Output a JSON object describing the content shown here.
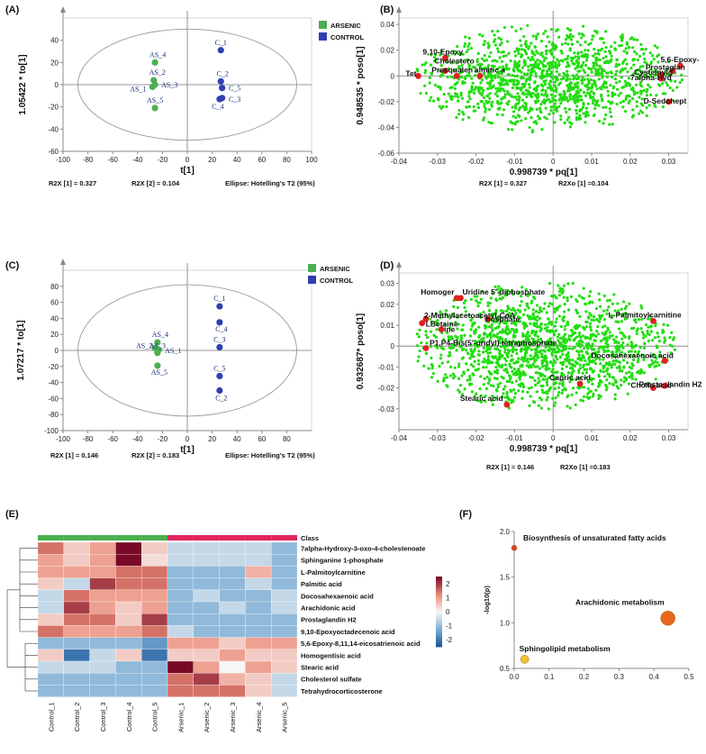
{
  "colors": {
    "arsenic": "#4caf50",
    "control": "#2f3fb0",
    "loading_point": "#22dd11",
    "highlight": "#e02020",
    "class_arsenic": "#4caf50",
    "class_control": "#e0245e"
  },
  "chart_data": [
    {
      "id": "A",
      "type": "scatter",
      "panel_label": "(A)",
      "xlabel": "t[1]",
      "ylabel": "1.05422 * to[1]",
      "xlim": [
        -100,
        100
      ],
      "ylim": [
        -60,
        60
      ],
      "xticks": [
        -100,
        -80,
        -60,
        -40,
        -20,
        0,
        20,
        40,
        60,
        80,
        100
      ],
      "yticks": [
        -60,
        -40,
        -20,
        0,
        20,
        40
      ],
      "legend": [
        {
          "name": "ARSENIC",
          "color": "#4caf50"
        },
        {
          "name": "CONTROL",
          "color": "#2f3fb0"
        }
      ],
      "legend_position": "top-right",
      "ellipse": {
        "rx": 88,
        "ry": 50
      },
      "points": [
        {
          "label": "AS_4",
          "x": -26,
          "y": 20,
          "group": "ARSENIC"
        },
        {
          "label": "AS_2",
          "x": -27,
          "y": 4,
          "group": "ARSENIC"
        },
        {
          "label": "AS_3",
          "x": -26,
          "y": 0,
          "group": "ARSENIC"
        },
        {
          "label": "AS_1",
          "x": -28,
          "y": -2,
          "group": "ARSENIC"
        },
        {
          "label": "AS_5",
          "x": -26,
          "y": -21,
          "group": "ARSENIC"
        },
        {
          "label": "C_1",
          "x": 27,
          "y": 31,
          "group": "CONTROL"
        },
        {
          "label": "C_2",
          "x": 27,
          "y": 3,
          "group": "CONTROL"
        },
        {
          "label": "C_5",
          "x": 28,
          "y": -3,
          "group": "CONTROL"
        },
        {
          "label": "C_3",
          "x": 28,
          "y": -12,
          "group": "CONTROL"
        },
        {
          "label": "C_4",
          "x": 26,
          "y": -13,
          "group": "CONTROL"
        }
      ],
      "notes": [
        "R2X [1] = 0.327",
        "R2X [2] = 0.104",
        "Ellipse: Hotelling's T2 (95%)"
      ]
    },
    {
      "id": "B",
      "type": "scatter",
      "panel_label": "(B)",
      "xlabel": "0.998739 * pq[1]",
      "ylabel": "0.948535 * poso[1]",
      "xlim": [
        -0.04,
        0.035
      ],
      "ylim": [
        -0.06,
        0.045
      ],
      "xticks": [
        -0.04,
        -0.03,
        -0.02,
        -0.01,
        0,
        0.01,
        0.02,
        0.03
      ],
      "xticklabels": [
        "-0.04",
        "-0.03",
        "-0.02",
        "-0.01",
        "0",
        "0.01",
        "0.02",
        "0.03"
      ],
      "yticks": [
        -0.06,
        -0.04,
        -0.02,
        0,
        0.02,
        0.04
      ],
      "yticklabels": [
        "-0.06",
        "-0.04",
        "-0.02",
        "0",
        "0.02",
        "0.04"
      ],
      "cloud": {
        "cx": -0.001,
        "cy": -0.002,
        "rx": 0.035,
        "ry": 0.042,
        "n": 1300,
        "seed": 7
      },
      "highlights": [
        {
          "label": "9,10-Epoxy",
          "x": -0.028,
          "y": 0.014
        },
        {
          "label": "Cholestero",
          "x": -0.028,
          "y": 0.004
        },
        {
          "label": "Presqualen",
          "x": -0.025,
          "y": 0.0
        },
        {
          "label": "almitic a",
          "x": -0.019,
          "y": 0.0
        },
        {
          "label": "Tet",
          "x": -0.035,
          "y": 0.0
        },
        {
          "label": "5,6-Epoxy-",
          "x": 0.033,
          "y": 0.008
        },
        {
          "label": "Prostaglan",
          "x": 0.031,
          "y": 0.004
        },
        {
          "label": "Cysteinylg",
          "x": 0.028,
          "y": 0.001
        },
        {
          "label": "7alpha-Hyd",
          "x": 0.028,
          "y": -0.002
        },
        {
          "label": "D-Sedohept",
          "x": 0.03,
          "y": -0.02
        }
      ],
      "notes": [
        "R2X [1] = 0.327",
        "R2Xo [1] =0.104"
      ]
    },
    {
      "id": "C",
      "type": "scatter",
      "panel_label": "(C)",
      "xlabel": "t[1]",
      "ylabel": "1.07217 * to[1]",
      "xlim": [
        -100,
        100
      ],
      "ylim": [
        -100,
        100
      ],
      "xticks": [
        -100,
        -80,
        -60,
        -40,
        -20,
        0,
        20,
        40,
        60,
        80
      ],
      "yticks": [
        -100,
        -80,
        -60,
        -40,
        -20,
        0,
        20,
        40,
        60,
        80
      ],
      "legend": [
        {
          "name": "ARSENIC",
          "color": "#4caf50"
        },
        {
          "name": "CONTROL",
          "color": "#2f3fb0"
        }
      ],
      "legend_position": "top-right",
      "ellipse": {
        "rx": 88,
        "ry": 82
      },
      "points": [
        {
          "label": "AS_4",
          "x": -24,
          "y": 10,
          "group": "ARSENIC"
        },
        {
          "label": "AS_2",
          "x": -26,
          "y": 3,
          "group": "ARSENIC"
        },
        {
          "label": "AS_1",
          "x": -23,
          "y": 1,
          "group": "ARSENIC"
        },
        {
          "label": "AS_3",
          "x": -24,
          "y": -3,
          "group": "ARSENIC"
        },
        {
          "label": "AS_5",
          "x": -24,
          "y": -19,
          "group": "ARSENIC"
        },
        {
          "label": "C_1",
          "x": 26,
          "y": 55,
          "group": "CONTROL"
        },
        {
          "label": "C_4",
          "x": 26,
          "y": 35,
          "group": "CONTROL"
        },
        {
          "label": "C_3",
          "x": 26,
          "y": 4,
          "group": "CONTROL"
        },
        {
          "label": "C_5",
          "x": 26,
          "y": -32,
          "group": "CONTROL"
        },
        {
          "label": "C_2",
          "x": 26,
          "y": -50,
          "group": "CONTROL"
        }
      ],
      "notes": [
        "R2X [1] = 0.146",
        "R2X [2] = 0.183",
        "Ellipse: Hotelling's T2 (95%)"
      ]
    },
    {
      "id": "D",
      "type": "scatter",
      "panel_label": "(D)",
      "xlabel": "0.998739 * pq[1]",
      "ylabel": "0.932687* poso[1]",
      "xlim": [
        -0.04,
        0.035
      ],
      "ylim": [
        -0.04,
        0.035
      ],
      "xticks": [
        -0.04,
        -0.03,
        -0.02,
        -0.01,
        0,
        0.01,
        0.02,
        0.03
      ],
      "xticklabels": [
        "-0.04",
        "-0.03",
        "-0.02",
        "-0.01",
        "0",
        "0.01",
        "0.02",
        "0.03"
      ],
      "yticks": [
        -0.03,
        -0.02,
        -0.01,
        0,
        0.01,
        0.02,
        0.03
      ],
      "yticklabels": [
        "-0.03",
        "-0.02",
        "-0.01",
        "0",
        "0.01",
        "0.02",
        "0.03"
      ],
      "cloud": {
        "cx": -0.002,
        "cy": 0.0,
        "rx": 0.034,
        "ry": 0.031,
        "n": 1500,
        "seed": 11
      },
      "highlights": [
        {
          "label": "Homoger",
          "x": -0.025,
          "y": 0.023
        },
        {
          "label": "Uridine 5'-diphosphate",
          "x": -0.024,
          "y": 0.023
        },
        {
          "label": "2-Methylacetoacetyl-CoA",
          "x": -0.033,
          "y": 0.013
        },
        {
          "label": "hosphate",
          "x": -0.017,
          "y": 0.013
        },
        {
          "label": "L-Palmitoylcarnitine",
          "x": 0.026,
          "y": 0.012
        },
        {
          "label": "LBetaine",
          "x": -0.034,
          "y": 0.011
        },
        {
          "label": "ine",
          "x": -0.029,
          "y": 0.008
        },
        {
          "label": "P1,P4-Bis(5'-uridyl) tetraphosphate",
          "x": -0.033,
          "y": -0.001
        },
        {
          "label": "Docosahexaenoic acid",
          "x": 0.029,
          "y": -0.007
        },
        {
          "label": "Capric acid",
          "x": 0.007,
          "y": -0.018
        },
        {
          "label": "Prostaglandin H2",
          "x": 0.026,
          "y": -0.02
        },
        {
          "label": "Cholic acid",
          "x": 0.029,
          "y": -0.019
        },
        {
          "label": "Stearic acid",
          "x": -0.012,
          "y": -0.028
        }
      ],
      "notes": [
        "R2X [1] = 0.146",
        "R2Xo [1] =0.183"
      ]
    },
    {
      "id": "E",
      "type": "heatmap",
      "panel_label": "(E)",
      "class_label": "Class",
      "columns": [
        "Control_1",
        "Control_2",
        "Control_3",
        "Control_4",
        "Control_5",
        "Arsenic_1",
        "Arsenic_2",
        "Arsenic_3",
        "Arsenic_4",
        "Arsenic_5"
      ],
      "column_class": [
        "control",
        "control",
        "control",
        "control",
        "control",
        "arsenic",
        "arsenic",
        "arsenic",
        "arsenic",
        "arsenic"
      ],
      "rows": [
        "7alpha-Hydroxy-3-oxo-4-cholestenoate",
        "Sphinganine 1-phosphate",
        "L-Palmitoylcarnitine",
        "Palmitic acid",
        "Docosahexaenoic acid",
        "Arachidonic acid",
        "Prostaglandin H2",
        "9,10-Epoxyoctadecenoic acid",
        "5,6-Epoxy-8,11,14-eicosatrienoic acid",
        "Homogentisic acid",
        "Stearic acid",
        "Cholesterol sulfate",
        "Tetrahydrocorticosterone"
      ],
      "values": [
        [
          1.5,
          0.5,
          1.0,
          2.5,
          0.5,
          -0.5,
          -0.5,
          -0.5,
          -0.5,
          -1.0
        ],
        [
          1.0,
          0.5,
          1.0,
          2.7,
          0.3,
          -0.5,
          -0.5,
          -0.5,
          -0.5,
          -1.0
        ],
        [
          1.0,
          1.0,
          1.0,
          1.5,
          1.5,
          -1.0,
          -1.0,
          -1.0,
          0.8,
          -1.0
        ],
        [
          0.5,
          -0.5,
          2.0,
          1.5,
          1.5,
          -1.0,
          -1.0,
          -1.0,
          -0.5,
          -1.0
        ],
        [
          -0.5,
          1.5,
          1.0,
          1.0,
          1.0,
          -1.0,
          -0.5,
          -1.0,
          -1.0,
          -0.5
        ],
        [
          -0.5,
          2.0,
          1.0,
          0.5,
          1.0,
          -1.0,
          -1.0,
          -0.5,
          -1.0,
          -0.5
        ],
        [
          0.5,
          1.5,
          1.5,
          0.5,
          2.0,
          -1.0,
          -1.0,
          -1.0,
          -1.0,
          -1.0
        ],
        [
          1.5,
          1.0,
          1.0,
          1.0,
          1.5,
          -0.5,
          -1.0,
          -1.0,
          -1.0,
          -1.0
        ],
        [
          -1.0,
          -1.0,
          -1.0,
          -1.0,
          -1.5,
          1.0,
          1.0,
          0.5,
          1.0,
          1.0
        ],
        [
          0.5,
          -2.0,
          -0.5,
          0.5,
          -2.0,
          0.5,
          0.5,
          1.0,
          0.5,
          0.5
        ],
        [
          -0.5,
          -0.5,
          -0.5,
          -1.0,
          -1.0,
          2.7,
          1.0,
          0.0,
          1.0,
          0.5
        ],
        [
          -1.0,
          -1.0,
          -1.0,
          -1.0,
          -1.0,
          1.5,
          2.0,
          0.8,
          0.5,
          -0.5
        ],
        [
          -1.0,
          -1.0,
          -1.0,
          -1.0,
          -1.0,
          1.5,
          1.5,
          1.5,
          0.5,
          -0.5
        ]
      ],
      "color_range": [
        -2.5,
        2.5
      ],
      "scale_ticks": [
        2,
        1,
        0,
        -1,
        -2
      ]
    },
    {
      "id": "F",
      "type": "scatter",
      "panel_label": "(F)",
      "xlabel": "",
      "ylabel": "-log10(p)",
      "xlim": [
        0,
        0.5
      ],
      "ylim": [
        0.5,
        2.0
      ],
      "xticks": [
        0,
        0.1,
        0.2,
        0.3,
        0.4,
        0.5
      ],
      "xticklabels": [
        "0.0",
        "0.1",
        "0.2",
        "0.3",
        "0.4",
        "0.5"
      ],
      "yticks": [
        0.5,
        1.0,
        1.5,
        2.0
      ],
      "yticklabels": [
        "0.5",
        "1.0",
        "1.5",
        "2.0"
      ],
      "points": [
        {
          "label": "Biosynthesis of unsaturated fatty acids",
          "x": 0.0,
          "y": 1.82,
          "size": 3,
          "color": "#d8432a"
        },
        {
          "label": "Arachidonic metabolism",
          "x": 0.44,
          "y": 1.05,
          "size": 8,
          "color": "#e8661a"
        },
        {
          "label": "Sphingolipid metabolism",
          "x": 0.03,
          "y": 0.6,
          "size": 4.5,
          "color": "#f1c232"
        }
      ]
    }
  ]
}
